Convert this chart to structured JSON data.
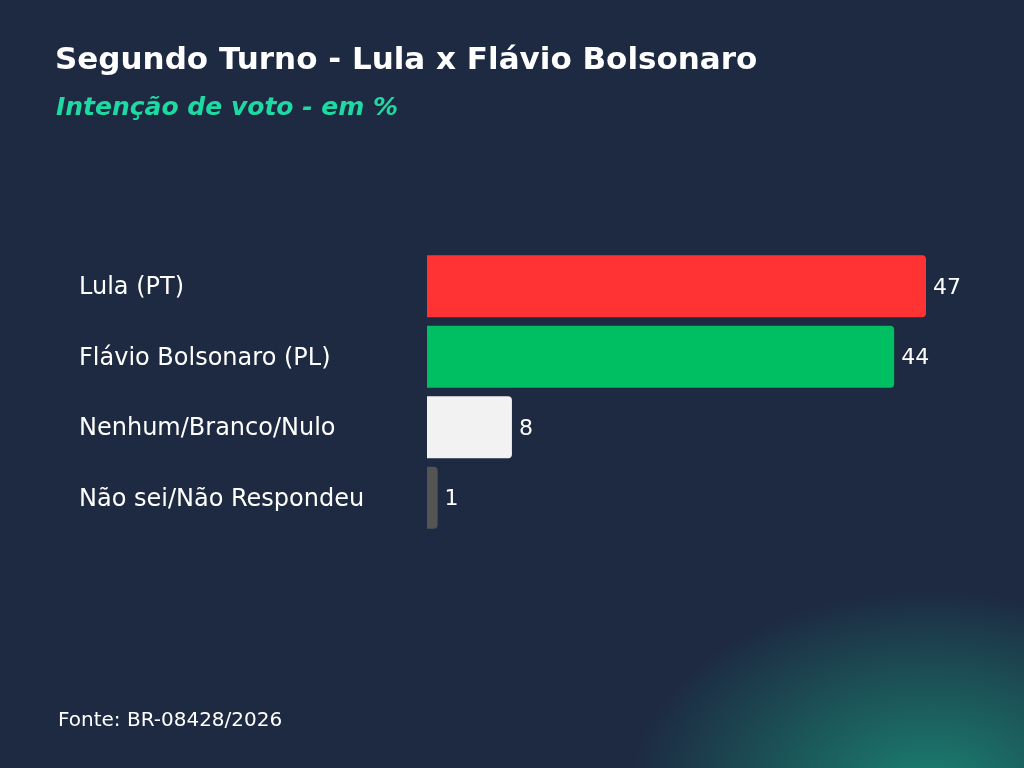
{
  "chart_data": {
    "type": "bar",
    "orientation": "horizontal",
    "title": "Segundo Turno - Lula x Flávio Bolsonaro",
    "subtitle": "Intenção de voto - em %",
    "categories": [
      "Lula (PT)",
      "Flávio Bolsonaro (PL)",
      "Nenhum/Branco/Nulo",
      "Não sei/Não Respondeu"
    ],
    "values": [
      47,
      44,
      8,
      1
    ],
    "colors": [
      "#ff3333",
      "#00bf63",
      "#f2f2f2",
      "#545454"
    ],
    "data_labels": true,
    "grid": false,
    "tick_labels": "y",
    "annotations": [
      "Fonte: BR-08428/2026"
    ]
  }
}
